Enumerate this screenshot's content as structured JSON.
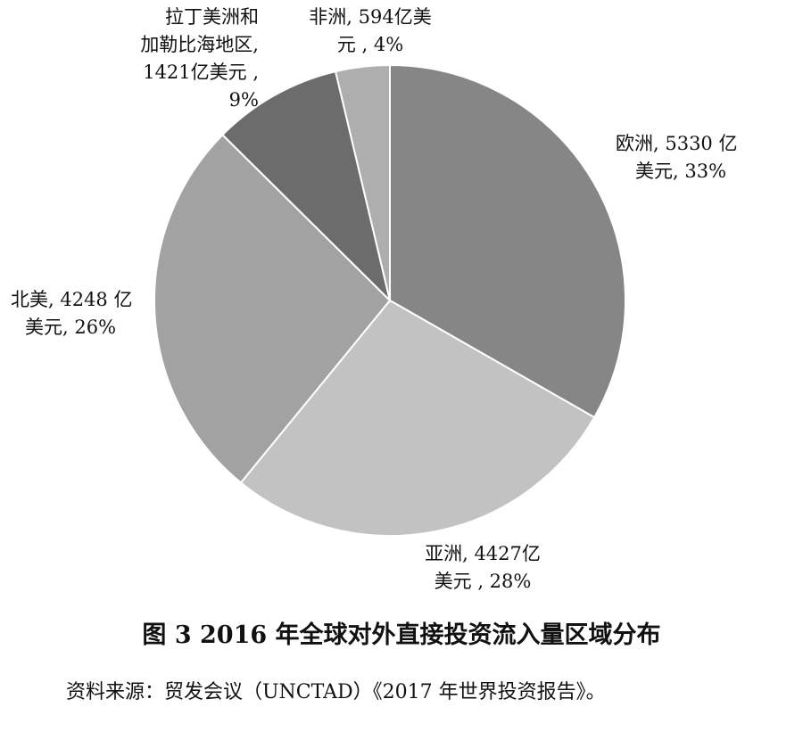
{
  "chart_data": {
    "type": "pie",
    "title": "图 3 2016 年全球对外直接投资流入量区域分布",
    "source": "资料来源：贸发会议（UNCTAD）《2017 年世界投资报告》。",
    "slices": [
      {
        "name": "欧洲",
        "value": 5330,
        "percent": 33,
        "color": "#868686",
        "label_line1": "欧洲, 5330 亿",
        "label_line2": "美元, 33%"
      },
      {
        "name": "亚洲",
        "value": 4427,
        "percent": 28,
        "color": "#c2c2c2",
        "label_line1": "亚洲, 4427亿",
        "label_line2": "美元 , 28%"
      },
      {
        "name": "北美",
        "value": 4248,
        "percent": 26,
        "color": "#a2a2a2",
        "label_line1": "北美, 4248 亿",
        "label_line2": "美元, 26%"
      },
      {
        "name": "拉丁美洲和加勒比海地区",
        "value": 1421,
        "percent": 9,
        "color": "#6c6c6c",
        "label_line1": "拉丁美洲和",
        "label_line2": "加勒比海地区,",
        "label_line3": "1421亿美元 ,",
        "label_line4": "9%"
      },
      {
        "name": "非洲",
        "value": 594,
        "percent": 4,
        "color": "#aeaeae",
        "label_line1": "非洲, 594亿美",
        "label_line2": "元 , 4%"
      }
    ],
    "unit": "亿美元",
    "legend": "none"
  }
}
